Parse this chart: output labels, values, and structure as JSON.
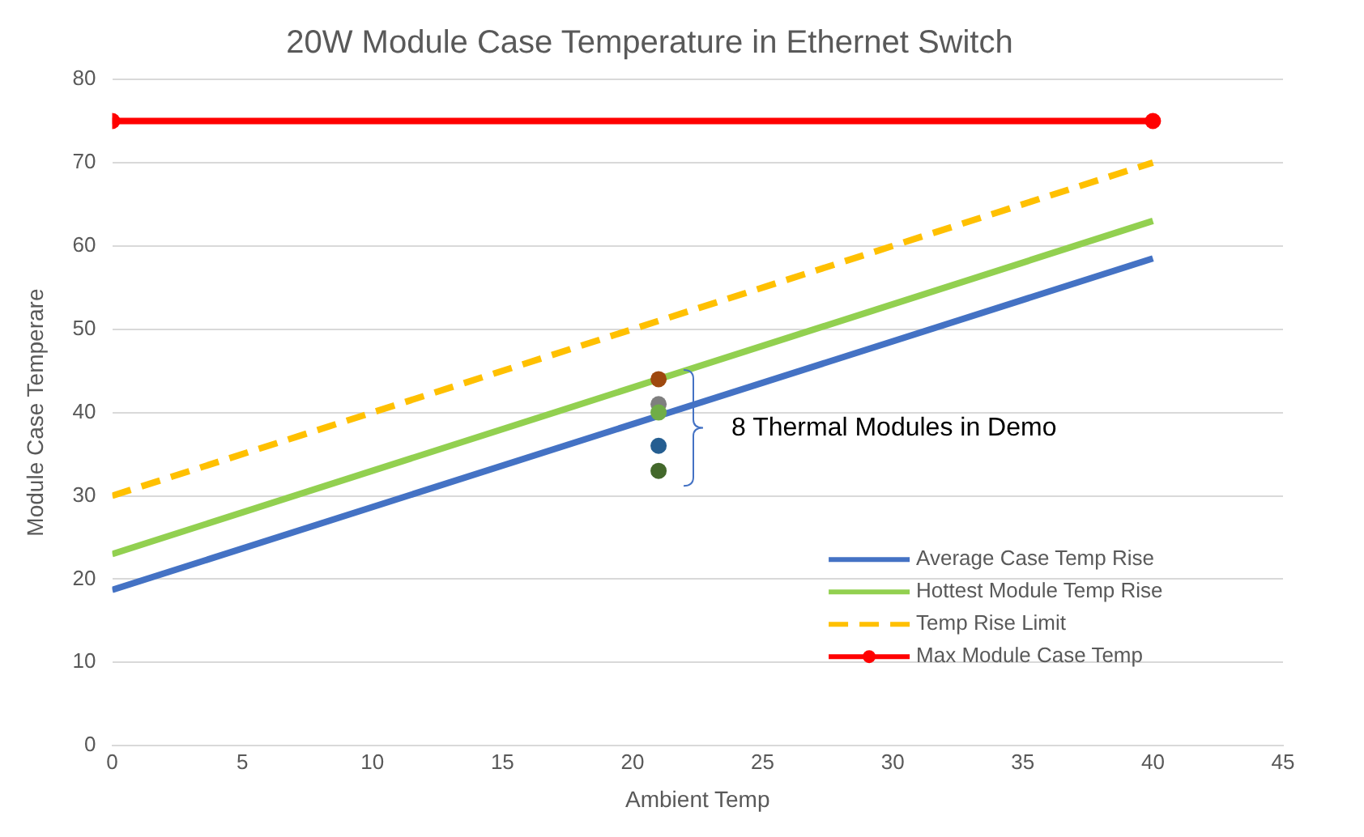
{
  "chart_data": {
    "type": "line",
    "title": "20W Module Case Temperature in Ethernet Switch",
    "xlabel": "Ambient Temp",
    "ylabel": "Module Case Temperare",
    "xlim": [
      0,
      45
    ],
    "xticks": [
      0,
      5,
      10,
      15,
      20,
      25,
      30,
      35,
      40,
      45
    ],
    "ylim": [
      0,
      80
    ],
    "yticks": [
      0,
      10,
      20,
      30,
      40,
      50,
      60,
      70,
      80
    ],
    "grid": "y",
    "legend": "bottom right",
    "series": [
      {
        "name": "Average Case Temp Rise",
        "color": "#4472c4",
        "x": [
          0,
          40
        ],
        "values": [
          18.7,
          58.5
        ],
        "marker": "none",
        "line_style": "solid"
      },
      {
        "name": "Hottest Module Temp Rise",
        "color": "#92d050",
        "x": [
          0,
          40
        ],
        "values": [
          23,
          63
        ],
        "marker": "none",
        "line_style": "solid"
      },
      {
        "name": "Temp Rise Limit",
        "color": "#ffc000",
        "x": [
          0,
          40
        ],
        "values": [
          30,
          70
        ],
        "marker": "none",
        "line_style": "dashed"
      },
      {
        "name": "Max Module Case Temp",
        "color": "#ff0000",
        "x": [
          0,
          40
        ],
        "values": [
          75,
          75
        ],
        "marker": "circle",
        "line_style": "solid"
      },
      {
        "type": "scatter",
        "x": [
          21,
          21,
          21,
          21,
          21
        ],
        "values": [
          44,
          41,
          40,
          36,
          33
        ],
        "colors": [
          "#9e480e",
          "#7f7f7f",
          "#70ad47",
          "#255e91",
          "#43682b"
        ],
        "marker": "circle"
      }
    ],
    "annotations": [
      "8 Thermal Modules in Demo"
    ]
  }
}
